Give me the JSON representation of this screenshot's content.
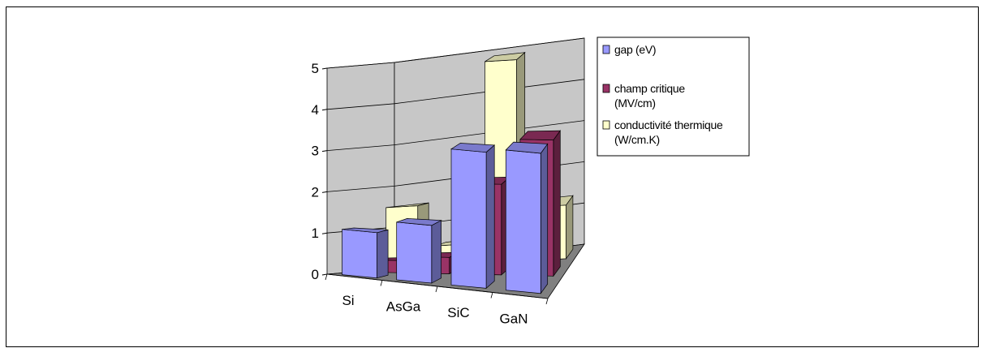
{
  "chart_data": {
    "type": "bar",
    "categories": [
      "Si",
      "AsGa",
      "SiC",
      "GaN"
    ],
    "series": [
      {
        "name": "gap (eV)",
        "values": [
          1.1,
          1.4,
          3.3,
          3.4
        ],
        "color": "#9999ff"
      },
      {
        "name": "champ critique (MV/cm)",
        "values": [
          0.3,
          0.4,
          2.2,
          3.3
        ],
        "color": "#993366"
      },
      {
        "name": "conductivité thermique (W/cm.K)",
        "values": [
          1.5,
          0.5,
          4.9,
          1.3
        ],
        "color": "#ffffcc"
      }
    ],
    "ylim": [
      0,
      5
    ],
    "yticks": [
      "0",
      "1",
      "2",
      "3",
      "4",
      "5"
    ],
    "grid": true,
    "legend_position": "right",
    "legend": [
      {
        "line1": "gap (eV)",
        "line2": ""
      },
      {
        "line1": "champ critique",
        "line2": "(MV/cm)"
      },
      {
        "line1": "conductivité thermique",
        "line2": "(W/cm.K)"
      }
    ]
  }
}
